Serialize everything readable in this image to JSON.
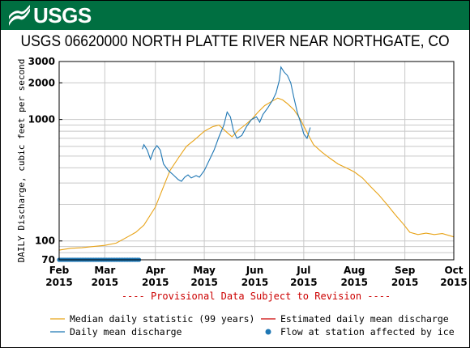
{
  "header": {
    "logo_text": "USGS"
  },
  "chart_data": {
    "type": "line",
    "title": "USGS 06620000 NORTH PLATTE RIVER NEAR NORTHGATE, CO",
    "ylabel": "DAILY Discharge, cubic feet per second",
    "yscale": "log",
    "ylim": [
      70,
      3000
    ],
    "yticks": [
      70,
      100,
      1000,
      2000,
      3000
    ],
    "ytick_labels": [
      "70",
      "100",
      "1000",
      "2000",
      "3000"
    ],
    "xlim": [
      "2015-02-01",
      "2015-10-01"
    ],
    "xticks": [
      {
        "date": "2015-02-01",
        "month": "Feb",
        "year": "2015"
      },
      {
        "date": "2015-03-01",
        "month": "Mar",
        "year": "2015"
      },
      {
        "date": "2015-04-01",
        "month": "Apr",
        "year": "2015"
      },
      {
        "date": "2015-05-01",
        "month": "May",
        "year": "2015"
      },
      {
        "date": "2015-06-01",
        "month": "Jun",
        "year": "2015"
      },
      {
        "date": "2015-07-01",
        "month": "Jul",
        "year": "2015"
      },
      {
        "date": "2015-08-01",
        "month": "Aug",
        "year": "2015"
      },
      {
        "date": "2015-09-01",
        "month": "Sep",
        "year": "2015"
      },
      {
        "date": "2015-10-01",
        "month": "Oct",
        "year": "2015"
      }
    ],
    "grid": true,
    "provisional_note": "---- Provisional Data Subject to Revision ----",
    "series": [
      {
        "name": "Median daily statistic (99 years)",
        "color": "#e8a317",
        "points": [
          [
            "2015-02-01",
            84
          ],
          [
            "2015-02-08",
            87
          ],
          [
            "2015-02-15",
            88
          ],
          [
            "2015-02-22",
            90
          ],
          [
            "2015-03-01",
            92
          ],
          [
            "2015-03-08",
            96
          ],
          [
            "2015-03-15",
            108
          ],
          [
            "2015-03-20",
            118
          ],
          [
            "2015-03-25",
            135
          ],
          [
            "2015-04-01",
            190
          ],
          [
            "2015-04-06",
            280
          ],
          [
            "2015-04-10",
            380
          ],
          [
            "2015-04-15",
            480
          ],
          [
            "2015-04-20",
            600
          ],
          [
            "2015-04-25",
            680
          ],
          [
            "2015-05-01",
            800
          ],
          [
            "2015-05-06",
            870
          ],
          [
            "2015-05-10",
            900
          ],
          [
            "2015-05-15",
            780
          ],
          [
            "2015-05-18",
            720
          ],
          [
            "2015-05-22",
            820
          ],
          [
            "2015-05-26",
            900
          ],
          [
            "2015-05-30",
            1000
          ],
          [
            "2015-06-03",
            1150
          ],
          [
            "2015-06-07",
            1300
          ],
          [
            "2015-06-11",
            1400
          ],
          [
            "2015-06-15",
            1500
          ],
          [
            "2015-06-18",
            1450
          ],
          [
            "2015-06-21",
            1350
          ],
          [
            "2015-06-25",
            1200
          ],
          [
            "2015-06-29",
            1000
          ],
          [
            "2015-07-03",
            780
          ],
          [
            "2015-07-07",
            620
          ],
          [
            "2015-07-12",
            540
          ],
          [
            "2015-07-17",
            480
          ],
          [
            "2015-07-22",
            430
          ],
          [
            "2015-07-27",
            400
          ],
          [
            "2015-08-01",
            370
          ],
          [
            "2015-08-06",
            330
          ],
          [
            "2015-08-11",
            280
          ],
          [
            "2015-08-16",
            240
          ],
          [
            "2015-08-21",
            200
          ],
          [
            "2015-08-26",
            165
          ],
          [
            "2015-08-31",
            138
          ],
          [
            "2015-09-04",
            118
          ],
          [
            "2015-09-09",
            113
          ],
          [
            "2015-09-14",
            116
          ],
          [
            "2015-09-19",
            113
          ],
          [
            "2015-09-24",
            115
          ],
          [
            "2015-10-01",
            108
          ]
        ]
      },
      {
        "name": "Estimated daily mean discharge",
        "color": "#cc0000",
        "points": []
      },
      {
        "name": "Daily mean discharge",
        "color": "#1f77b4",
        "points": [
          [
            "2015-03-24",
            570
          ],
          [
            "2015-03-25",
            620
          ],
          [
            "2015-03-27",
            560
          ],
          [
            "2015-03-29",
            470
          ],
          [
            "2015-03-31",
            560
          ],
          [
            "2015-04-02",
            610
          ],
          [
            "2015-04-04",
            560
          ],
          [
            "2015-04-06",
            430
          ],
          [
            "2015-04-09",
            380
          ],
          [
            "2015-04-12",
            350
          ],
          [
            "2015-04-15",
            320
          ],
          [
            "2015-04-17",
            310
          ],
          [
            "2015-04-19",
            335
          ],
          [
            "2015-04-21",
            350
          ],
          [
            "2015-04-23",
            330
          ],
          [
            "2015-04-26",
            345
          ],
          [
            "2015-04-28",
            335
          ],
          [
            "2015-05-01",
            380
          ],
          [
            "2015-05-04",
            460
          ],
          [
            "2015-05-07",
            560
          ],
          [
            "2015-05-10",
            720
          ],
          [
            "2015-05-13",
            900
          ],
          [
            "2015-05-15",
            1150
          ],
          [
            "2015-05-17",
            1050
          ],
          [
            "2015-05-19",
            800
          ],
          [
            "2015-05-21",
            700
          ],
          [
            "2015-05-24",
            740
          ],
          [
            "2015-05-27",
            880
          ],
          [
            "2015-05-30",
            1000
          ],
          [
            "2015-06-02",
            1050
          ],
          [
            "2015-06-04",
            950
          ],
          [
            "2015-06-06",
            1100
          ],
          [
            "2015-06-09",
            1250
          ],
          [
            "2015-06-12",
            1450
          ],
          [
            "2015-06-14",
            1650
          ],
          [
            "2015-06-16",
            2100
          ],
          [
            "2015-06-17",
            2700
          ],
          [
            "2015-06-19",
            2450
          ],
          [
            "2015-06-21",
            2300
          ],
          [
            "2015-06-23",
            2000
          ],
          [
            "2015-06-25",
            1500
          ],
          [
            "2015-06-27",
            1150
          ],
          [
            "2015-06-29",
            950
          ],
          [
            "2015-07-01",
            760
          ],
          [
            "2015-07-03",
            700
          ],
          [
            "2015-07-05",
            860
          ]
        ]
      }
    ],
    "ice": {
      "name": "Flow at station affected by ice",
      "color": "#1f77b4",
      "from": "2015-02-01",
      "to": "2015-03-22",
      "value": 70
    },
    "legend": {
      "placement": "bottom",
      "items": [
        {
          "label": "Median daily statistic (99 years)",
          "symbol": "line",
          "color": "#e8a317"
        },
        {
          "label": "Estimated daily mean discharge",
          "symbol": "line",
          "color": "#cc0000"
        },
        {
          "label": "Daily mean discharge",
          "symbol": "line",
          "color": "#1f77b4"
        },
        {
          "label": "Flow at station affected by ice",
          "symbol": "dot",
          "color": "#1f77b4"
        }
      ]
    }
  }
}
